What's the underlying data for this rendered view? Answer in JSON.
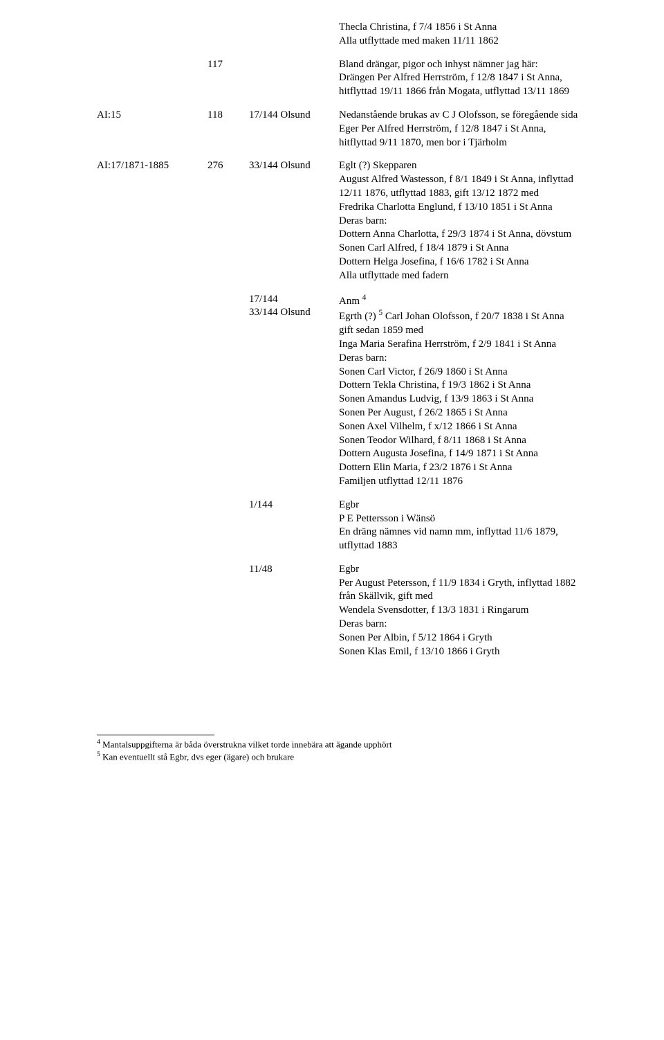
{
  "topBlock": {
    "l1": "Thecla Christina, f 7/4 1856 i St Anna",
    "l2": "Alla utflyttade med maken 11/11 1862"
  },
  "r117": {
    "num": "117",
    "l1": "Bland drängar, pigor och inhyst nämner jag här:",
    "l2": "Drängen Per Alfred Herrström, f 12/8 1847 i St Anna,",
    "l3": "hitflyttad 19/11 1866 från Mogata, utflyttad 13/11 1869"
  },
  "rAI15": {
    "c1": "AI:15",
    "c2": "118",
    "c3": "17/144 Olsund",
    "l1": "Nedanstående brukas av C J Olofsson, se föregående sida",
    "l2": "Eger Per Alfred Herrström, f 12/8 1847 i St Anna,",
    "l3": "hitflyttad 9/11 1870, men bor i Tjärholm"
  },
  "rAI17": {
    "c1": "AI:17/1871-1885",
    "c2": "276",
    "c3": "33/144 Olsund",
    "l1": "Eglt (?) Skepparen",
    "l2": "August Alfred Wastesson, f 8/1 1849 i St Anna, inflyttad",
    "l3": "12/11 1876, utflyttad 1883, gift  13/12 1872 med",
    "l4": "Fredrika Charlotta Englund, f 13/10 1851 i St Anna",
    "l5": "Deras barn:",
    "l6": "Dottern Anna Charlotta, f 29/3 1874 i St Anna, dövstum",
    "l7": "Sonen Carl Alfred, f 18/4 1879 i St Anna",
    "l8": "Dottern Helga Josefina, f 16/6 1782 i St Anna",
    "l9": "Alla utflyttade med fadern"
  },
  "rAnm": {
    "c3a": "17/144",
    "c3b": "33/144 Olsund",
    "h1a": "Anm ",
    "h1sup": "4",
    "h2a": "Egrth (?) ",
    "h2sup": "5",
    "h2b": " Carl Johan Olofsson, f 20/7 1838 i St Anna",
    "l3": "gift sedan 1859 med",
    "l4": "Inga Maria Serafina Herrström, f 2/9 1841 i St Anna",
    "l5": "Deras barn:",
    "l6": "Sonen Carl Victor, f 26/9 1860 i St Anna",
    "l7": "Dottern Tekla Christina, f 19/3 1862 i St Anna",
    "l8": "Sonen Amandus Ludvig, f 13/9 1863 i St Anna",
    "l9": "Sonen Per August, f 26/2 1865 i St Anna",
    "l10": "Sonen Axel Vilhelm, f x/12 1866 i St Anna",
    "l11": "Sonen Teodor Wilhard, f  8/11 1868 i St Anna",
    "l12": "Dottern Augusta Josefina, f 14/9 1871 i St Anna",
    "l13": "Dottern Elin Maria, f 23/2 1876 i St Anna",
    "l14": "Familjen utflyttad 12/11 1876"
  },
  "r1_144": {
    "c3": "1/144",
    "l1": "Egbr",
    "l2": "P E Pettersson i Wänsö",
    "l3": "En dräng nämnes vid namn mm, inflyttad 11/6 1879,",
    "l4": "utflyttad 1883"
  },
  "r11_48": {
    "c3": "11/48",
    "l1": "Egbr",
    "l2": "Per August Petersson, f 11/9 1834 i Gryth, inflyttad 1882",
    "l3": "från Skällvik, gift med",
    "l4": "Wendela Svensdotter, f 13/3 1831 i Ringarum",
    "l5": "Deras barn:",
    "l6": "Sonen Per Albin, f  5/12 1864 i Gryth",
    "l7": "Sonen Klas Emil, f 13/10 1866 i Gryth"
  },
  "footnotes": {
    "f4sup": "4",
    "f4": " Mantalsuppgifterna är båda överstrukna vilket torde innebära att ägande upphört",
    "f5sup": "5",
    "f5": " Kan eventuellt stå Egbr, dvs eger (ägare) och brukare"
  }
}
